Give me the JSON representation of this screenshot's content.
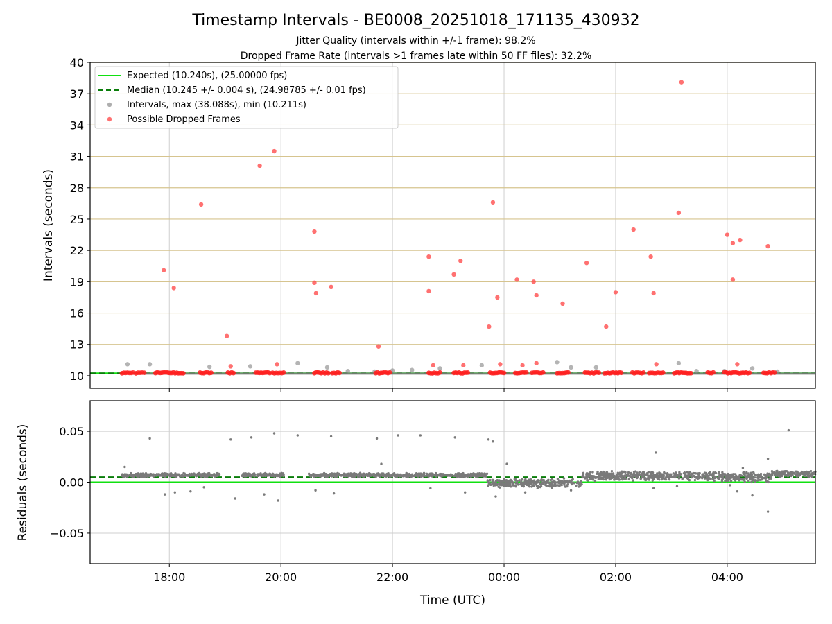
{
  "chart_data": [
    {
      "type": "scatter",
      "title": "Timestamp Intervals - BE0008_20251018_171135_430932",
      "subtitle_lines": [
        "Jitter Quality (intervals within +/-1 frame): 98.2%",
        "Dropped Frame Rate (intervals >1 frames late within 50 FF files): 32.2%"
      ],
      "xlabel": "",
      "ylabel": "Intervals (seconds)",
      "x_unit": "hours since 2025-10-18 00:00 UTC",
      "xlim": [
        16.58,
        29.58
      ],
      "ylim": [
        8.8,
        40
      ],
      "yticks": [
        10,
        13,
        16,
        19,
        22,
        25,
        28,
        31,
        34,
        37,
        40
      ],
      "grid_rows_color": "#d6c48f",
      "reference_lines": [
        {
          "name": "Expected (10.240s), (25.00000 fps)",
          "y": 10.24,
          "color": "#11e011",
          "style": "solid"
        },
        {
          "name": "Median (10.245 +/- 0.004 s), (24.98785 +/- 0.01 fps)",
          "y": 10.245,
          "color": "#0a7d0a",
          "style": "dashed"
        }
      ],
      "series": [
        {
          "name": "Intervals, max (38.088s), min (10.211s)",
          "color": "#8c8c8c",
          "baseline_band": [
            17.15,
            29.58,
            10.2,
            10.3
          ],
          "points": [
            [
              17.25,
              11.1
            ],
            [
              17.65,
              11.1
            ],
            [
              18.72,
              10.85
            ],
            [
              19.45,
              10.9
            ],
            [
              20.3,
              11.2
            ],
            [
              20.83,
              10.8
            ],
            [
              21.2,
              10.45
            ],
            [
              21.68,
              10.4
            ],
            [
              22.0,
              10.5
            ],
            [
              22.35,
              10.55
            ],
            [
              22.85,
              10.7
            ],
            [
              23.6,
              11.0
            ],
            [
              24.95,
              11.3
            ],
            [
              25.2,
              10.8
            ],
            [
              25.65,
              10.8
            ],
            [
              27.13,
              11.2
            ],
            [
              27.45,
              10.45
            ],
            [
              27.95,
              10.45
            ],
            [
              28.45,
              10.7
            ],
            [
              28.9,
              10.4
            ]
          ]
        },
        {
          "name": "Possible Dropped Frames",
          "color": "#ff4d4d",
          "points": [
            [
              17.9,
              20.1
            ],
            [
              18.08,
              18.4
            ],
            [
              18.57,
              26.4
            ],
            [
              19.03,
              13.8
            ],
            [
              19.1,
              10.9
            ],
            [
              19.62,
              30.1
            ],
            [
              19.88,
              31.5
            ],
            [
              19.93,
              11.1
            ],
            [
              20.6,
              23.8
            ],
            [
              20.6,
              18.9
            ],
            [
              20.63,
              17.9
            ],
            [
              20.9,
              18.5
            ],
            [
              21.75,
              12.8
            ],
            [
              22.65,
              21.4
            ],
            [
              22.65,
              18.1
            ],
            [
              22.73,
              11.0
            ],
            [
              23.1,
              19.7
            ],
            [
              23.22,
              21.0
            ],
            [
              23.27,
              11.0
            ],
            [
              23.73,
              14.7
            ],
            [
              23.8,
              26.6
            ],
            [
              23.88,
              17.5
            ],
            [
              23.93,
              11.1
            ],
            [
              24.23,
              19.2
            ],
            [
              24.33,
              11.0
            ],
            [
              24.53,
              19.0
            ],
            [
              24.58,
              17.7
            ],
            [
              24.58,
              11.2
            ],
            [
              25.05,
              16.9
            ],
            [
              25.48,
              20.8
            ],
            [
              25.83,
              14.7
            ],
            [
              26.0,
              18.0
            ],
            [
              26.32,
              24.0
            ],
            [
              26.63,
              21.4
            ],
            [
              26.68,
              17.9
            ],
            [
              26.73,
              11.1
            ],
            [
              27.13,
              25.6
            ],
            [
              27.18,
              38.1
            ],
            [
              28.0,
              23.5
            ],
            [
              28.1,
              22.7
            ],
            [
              28.1,
              19.2
            ],
            [
              28.18,
              11.1
            ],
            [
              28.23,
              23.0
            ],
            [
              28.73,
              22.4
            ]
          ],
          "baseline_clusters": [
            [
              17.15,
              17.35
            ],
            [
              17.4,
              17.55
            ],
            [
              17.75,
              18.25
            ],
            [
              18.55,
              18.75
            ],
            [
              19.05,
              19.15
            ],
            [
              19.55,
              19.8
            ],
            [
              19.85,
              20.05
            ],
            [
              20.6,
              20.85
            ],
            [
              20.92,
              21.05
            ],
            [
              21.7,
              21.95
            ],
            [
              22.65,
              22.85
            ],
            [
              23.1,
              23.35
            ],
            [
              23.75,
              24.0
            ],
            [
              24.2,
              24.4
            ],
            [
              24.5,
              24.7
            ],
            [
              24.95,
              25.15
            ],
            [
              25.45,
              25.7
            ],
            [
              25.8,
              26.1
            ],
            [
              26.3,
              26.5
            ],
            [
              26.6,
              26.85
            ],
            [
              27.05,
              27.35
            ],
            [
              27.65,
              27.75
            ],
            [
              27.95,
              28.4
            ],
            [
              28.65,
              28.85
            ]
          ]
        }
      ]
    },
    {
      "type": "scatter",
      "title": "",
      "xlabel": "Time (UTC)",
      "ylabel": "Residuals (seconds)",
      "x_unit": "hours since 2025-10-18 00:00 UTC",
      "xlim": [
        16.58,
        29.58
      ],
      "ylim": [
        -0.08,
        0.08
      ],
      "yticks": [
        -0.05,
        0.0,
        0.05
      ],
      "ytick_labels": [
        "−0.05",
        "0.00",
        "0.05"
      ],
      "xticks": [
        18,
        20,
        22,
        24,
        26,
        28
      ],
      "xtick_labels": [
        "18:00",
        "20:00",
        "22:00",
        "00:00",
        "02:00",
        "04:00"
      ],
      "reference_lines": [
        {
          "name": "Expected",
          "y": 0.0,
          "color": "#11e011",
          "style": "solid"
        },
        {
          "name": "Median",
          "y": 0.005,
          "color": "#0a7d0a",
          "style": "dashed"
        }
      ],
      "series": [
        {
          "name": "Residuals",
          "color": "#7a7a7a",
          "segments": [
            {
              "x": [
                17.15,
                18.9
              ],
              "center": 0.007,
              "spread": 0.0015
            },
            {
              "x": [
                19.3,
                20.05
              ],
              "center": 0.007,
              "spread": 0.0015
            },
            {
              "x": [
                20.5,
                23.7
              ],
              "center": 0.007,
              "spread": 0.0015
            },
            {
              "x": [
                23.7,
                25.4
              ],
              "center": -0.001,
              "spread": 0.0035
            },
            {
              "x": [
                25.4,
                25.8
              ],
              "center": 0.006,
              "spread": 0.0035
            },
            {
              "x": [
                25.8,
                27.9
              ],
              "center": 0.006,
              "spread": 0.0035
            },
            {
              "x": [
                27.9,
                28.8
              ],
              "center": 0.005,
              "spread": 0.004
            },
            {
              "x": [
                28.8,
                29.58
              ],
              "center": 0.008,
              "spread": 0.0025
            }
          ],
          "outliers": [
            [
              17.2,
              0.015
            ],
            [
              17.65,
              0.043
            ],
            [
              17.92,
              -0.012
            ],
            [
              18.1,
              -0.01
            ],
            [
              18.38,
              -0.009
            ],
            [
              18.62,
              -0.005
            ],
            [
              19.1,
              0.042
            ],
            [
              19.18,
              -0.016
            ],
            [
              19.47,
              0.044
            ],
            [
              19.7,
              -0.012
            ],
            [
              19.88,
              0.048
            ],
            [
              19.95,
              -0.018
            ],
            [
              20.3,
              0.046
            ],
            [
              20.62,
              -0.008
            ],
            [
              20.9,
              0.045
            ],
            [
              20.95,
              -0.011
            ],
            [
              21.72,
              0.043
            ],
            [
              21.8,
              0.018
            ],
            [
              22.1,
              0.046
            ],
            [
              22.5,
              0.046
            ],
            [
              22.68,
              -0.006
            ],
            [
              23.12,
              0.044
            ],
            [
              23.3,
              -0.01
            ],
            [
              23.72,
              0.042
            ],
            [
              23.8,
              0.04
            ],
            [
              23.85,
              -0.014
            ],
            [
              24.05,
              0.018
            ],
            [
              24.38,
              -0.01
            ],
            [
              24.6,
              -0.006
            ],
            [
              25.2,
              -0.008
            ],
            [
              26.72,
              0.029
            ],
            [
              26.68,
              -0.006
            ],
            [
              27.1,
              -0.004
            ],
            [
              28.05,
              -0.003
            ],
            [
              28.18,
              -0.009
            ],
            [
              28.28,
              0.014
            ],
            [
              28.45,
              -0.013
            ],
            [
              28.73,
              0.023
            ],
            [
              28.73,
              -0.029
            ],
            [
              29.1,
              0.051
            ]
          ]
        }
      ]
    }
  ]
}
